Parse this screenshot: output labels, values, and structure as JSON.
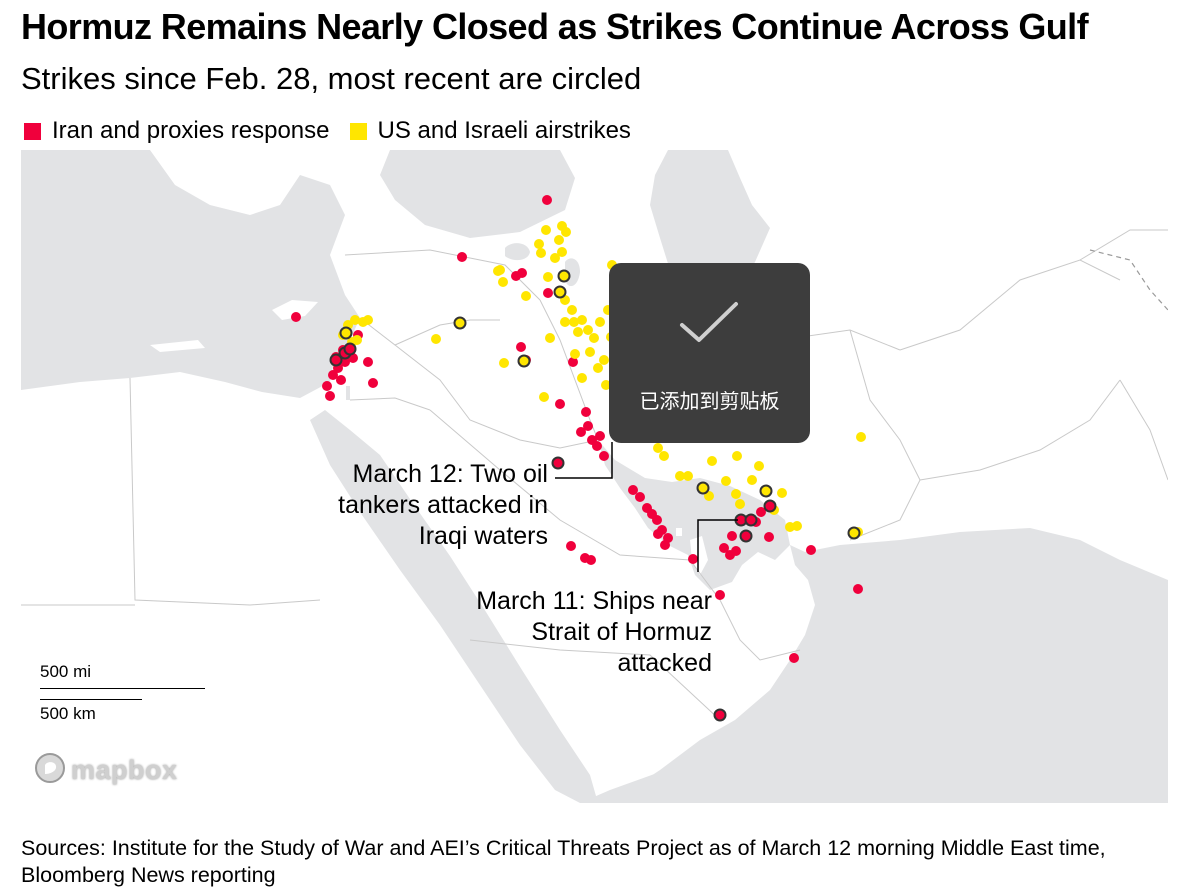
{
  "header": {
    "title": "Hormuz Remains Nearly Closed as Strikes Continue Across Gulf",
    "subtitle": "Strikes since Feb. 28, most recent are circled"
  },
  "legend": [
    {
      "label": "Iran and proxies response",
      "color": "#f0003c"
    },
    {
      "label": "US and Israeli airstrikes",
      "color": "#ffe600"
    }
  ],
  "annotations": {
    "march12": [
      "March 12: Two oil",
      "tankers attacked in",
      "Iraqi waters"
    ],
    "march11": [
      "March 11: Ships near",
      "Strait of Hormuz",
      "attacked"
    ]
  },
  "scale": {
    "miles": "500 mi",
    "km": "500 km"
  },
  "attribution": "mapbox",
  "toast": {
    "message": "已添加到剪贴板",
    "icon": "checkmark-icon"
  },
  "source": "Sources: Institute for the Study of War and AEI’s Critical Threats Project as of March 12 morning Middle East time, Bloomberg News reporting",
  "colors": {
    "land": "#ffffff",
    "water": "#e2e3e5",
    "iran_strikes": "#f0003c",
    "us_israel_strikes": "#ffe600",
    "recent_outline": "#333333"
  }
}
